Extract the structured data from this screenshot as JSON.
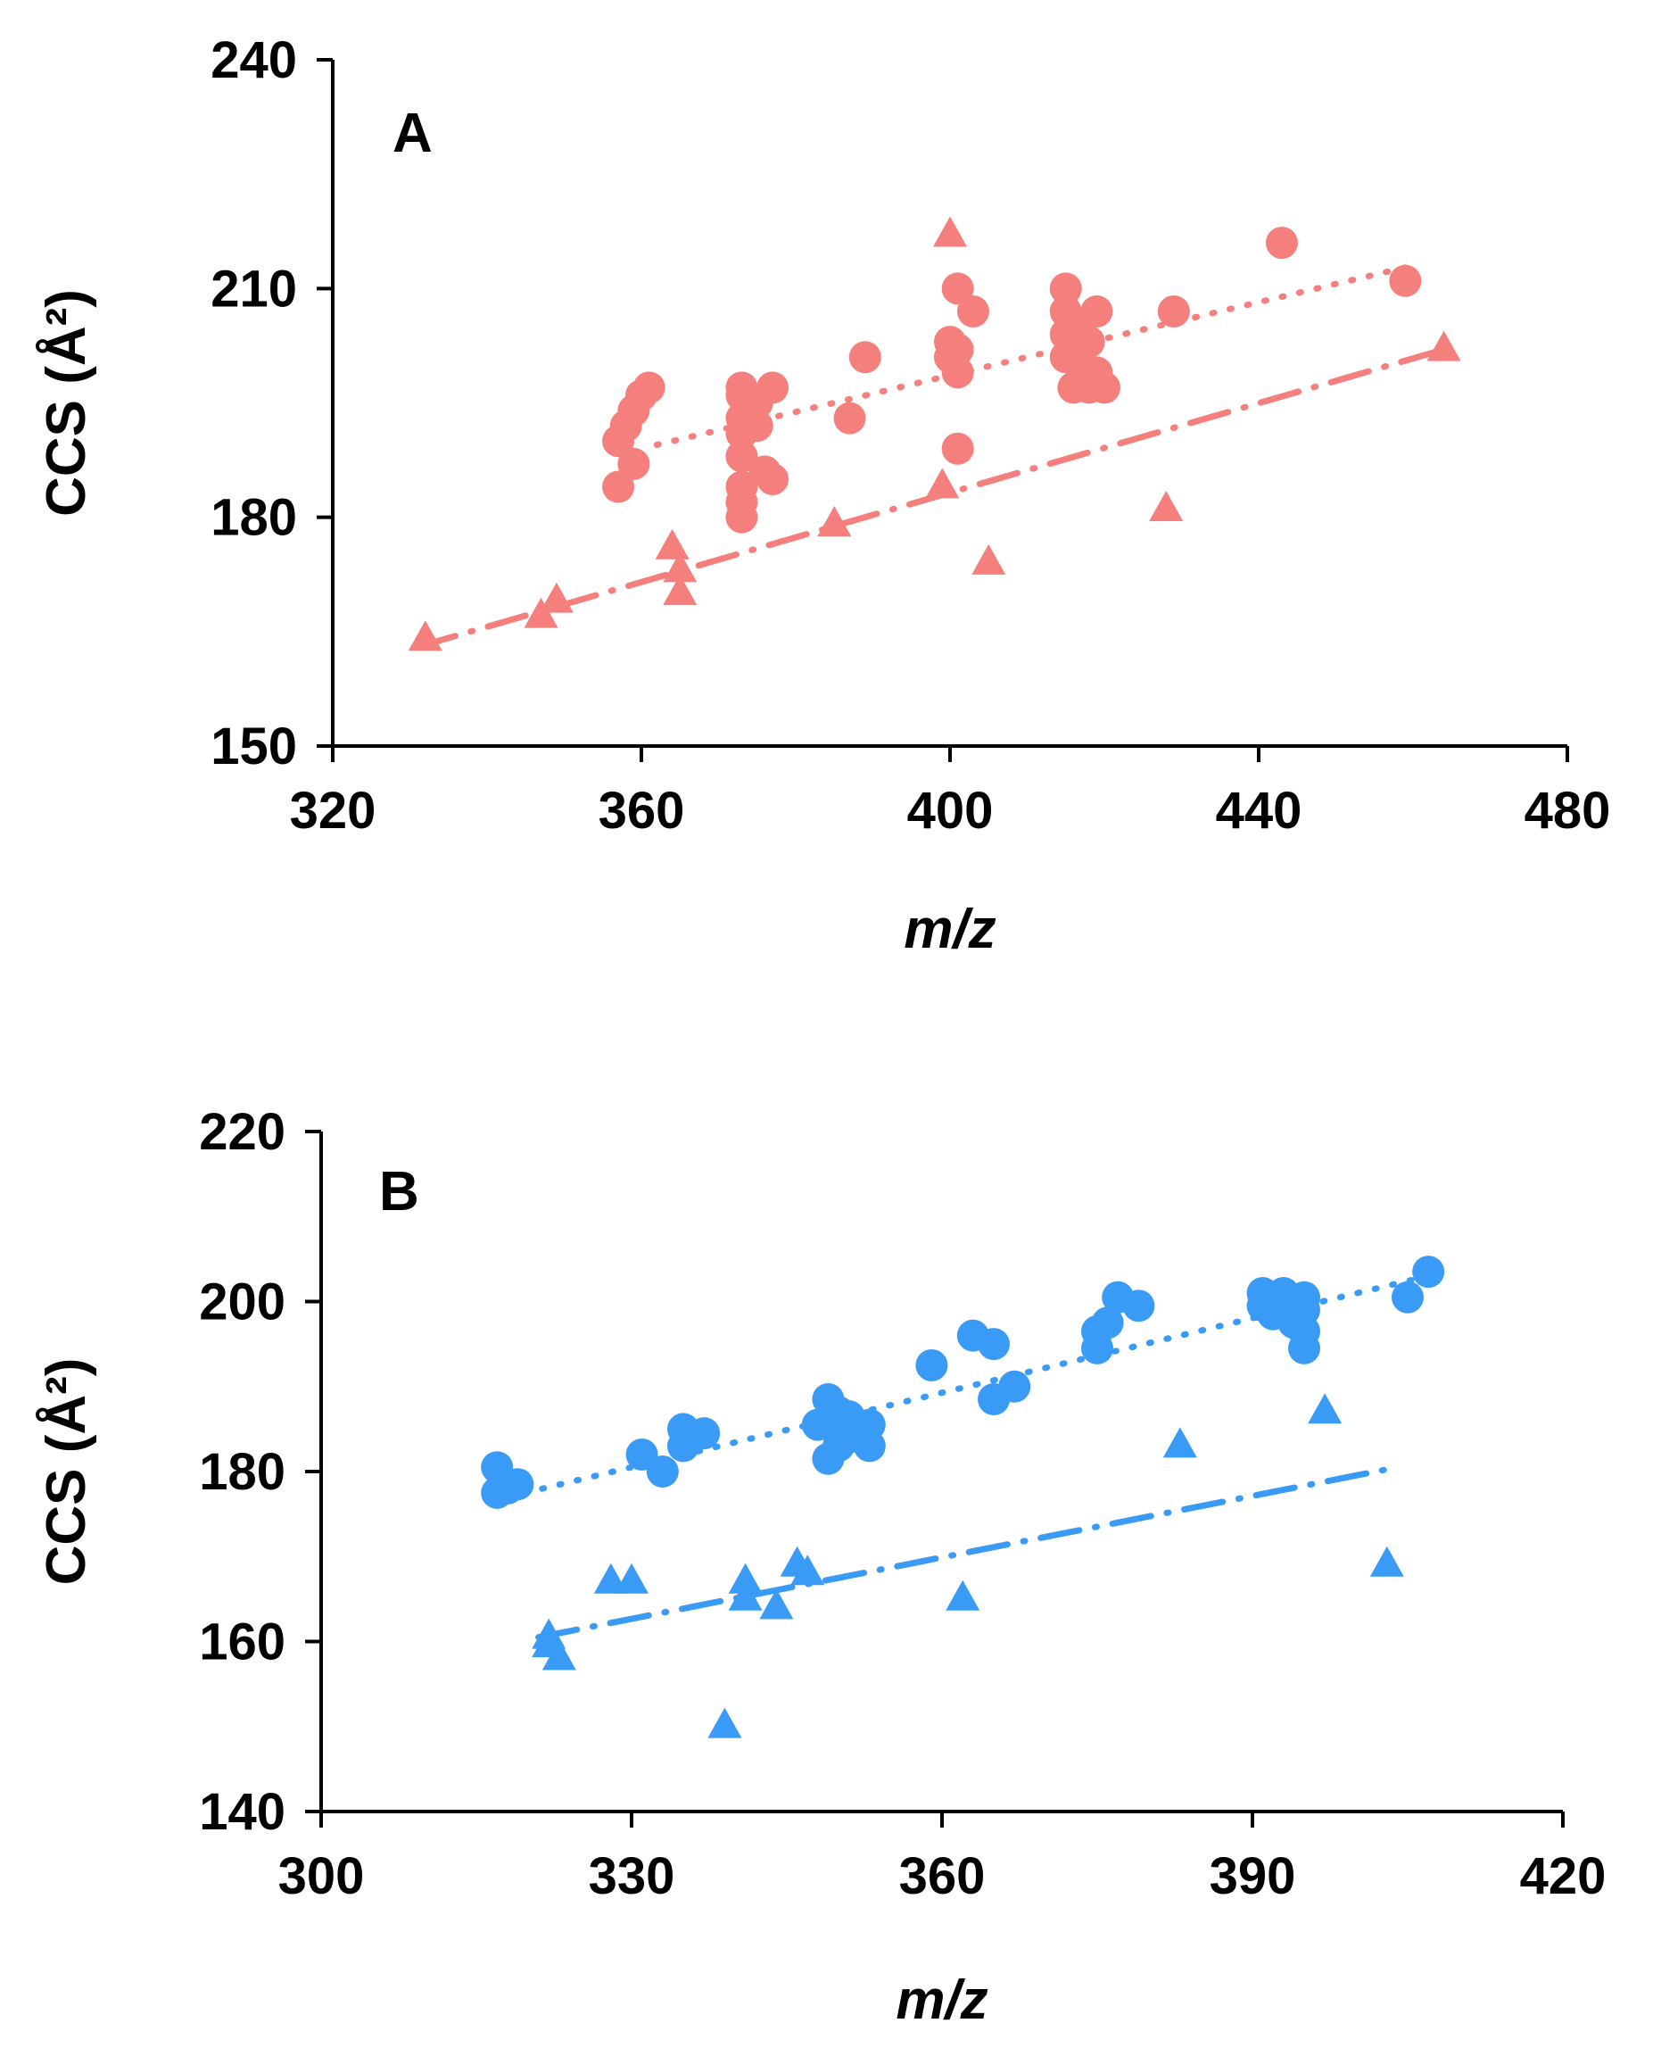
{
  "chart_data": [
    {
      "type": "scatter",
      "panel_label": "A",
      "xlabel": "m/z",
      "ylabel": "CCS (Å²)",
      "xlim": [
        320,
        480
      ],
      "ylim": [
        150,
        240
      ],
      "xticks": [
        "320",
        "360",
        "400",
        "440",
        "480"
      ],
      "yticks": [
        "150",
        "180",
        "210",
        "240"
      ],
      "color": "#F47F7D",
      "series": [
        {
          "name": "circles",
          "marker": "circle",
          "points": [
            [
              357,
              190
            ],
            [
              357,
              184
            ],
            [
              358,
              192
            ],
            [
              359,
              194
            ],
            [
              359,
              187
            ],
            [
              360,
              196
            ],
            [
              361,
              197
            ],
            [
              373,
              197
            ],
            [
              373,
              196
            ],
            [
              373,
              193
            ],
            [
              373,
              191
            ],
            [
              373,
              188
            ],
            [
              373,
              184
            ],
            [
              373,
              182
            ],
            [
              373,
              180
            ],
            [
              375,
              195
            ],
            [
              375,
              192
            ],
            [
              376,
              186
            ],
            [
              377,
              197
            ],
            [
              377,
              185
            ],
            [
              387,
              193
            ],
            [
              389,
              201
            ],
            [
              400,
              203
            ],
            [
              400,
              201
            ],
            [
              401,
              202
            ],
            [
              401,
              199
            ],
            [
              401,
              210
            ],
            [
              401,
              189
            ],
            [
              403,
              207
            ],
            [
              415,
              210
            ],
            [
              415,
              207
            ],
            [
              415,
              204
            ],
            [
              415,
              201
            ],
            [
              416,
              205
            ],
            [
              416,
              197
            ],
            [
              417,
              200
            ],
            [
              418,
              203
            ],
            [
              418,
              197
            ],
            [
              419,
              207
            ],
            [
              419,
              199
            ],
            [
              420,
              197
            ],
            [
              429,
              207
            ],
            [
              443,
              216
            ],
            [
              459,
              211
            ]
          ]
        },
        {
          "name": "triangles",
          "marker": "triangle",
          "points": [
            [
              332,
              164
            ],
            [
              347,
              167
            ],
            [
              349,
              169
            ],
            [
              364,
              176
            ],
            [
              365,
              173
            ],
            [
              365,
              170
            ],
            [
              385,
              179
            ],
            [
              399,
              184
            ],
            [
              400,
              217
            ],
            [
              405,
              174
            ],
            [
              428,
              181
            ],
            [
              464,
              202
            ]
          ]
        }
      ],
      "trendlines": [
        {
          "series": "circles",
          "style": "dotted",
          "x": [
            362,
            460
          ],
          "y": [
            189.5,
            213
          ]
        },
        {
          "series": "triangles",
          "style": "dashdot",
          "x": [
            331,
            464
          ],
          "y": [
            163,
            202
          ]
        }
      ]
    },
    {
      "type": "scatter",
      "panel_label": "B",
      "xlabel": "m/z",
      "ylabel": "CCS (Å²)",
      "xlim": [
        300,
        420
      ],
      "ylim": [
        140,
        220
      ],
      "xticks": [
        "300",
        "330",
        "360",
        "390",
        "420"
      ],
      "yticks": [
        "140",
        "160",
        "180",
        "200",
        "220"
      ],
      "color": "#3A9BF7",
      "series": [
        {
          "name": "circles",
          "marker": "circle",
          "points": [
            [
              317,
              180.5
            ],
            [
              317,
              177.5
            ],
            [
              318,
              178
            ],
            [
              319,
              178.5
            ],
            [
              331,
              182
            ],
            [
              333,
              180
            ],
            [
              335,
              183
            ],
            [
              335,
              185
            ],
            [
              337,
              184.5
            ],
            [
              348,
              185.5
            ],
            [
              349,
              188.5
            ],
            [
              349,
              186
            ],
            [
              349,
              181.5
            ],
            [
              350,
              183
            ],
            [
              350,
              187
            ],
            [
              351,
              184
            ],
            [
              351,
              186.5
            ],
            [
              352,
              185
            ],
            [
              353,
              183
            ],
            [
              353,
              185.5
            ],
            [
              359,
              192.5
            ],
            [
              363,
              196
            ],
            [
              365,
              195
            ],
            [
              365,
              188.5
            ],
            [
              367,
              190
            ],
            [
              375,
              194.5
            ],
            [
              375,
              196.5
            ],
            [
              376,
              197.5
            ],
            [
              377,
              200.5
            ],
            [
              379,
              199.5
            ],
            [
              391,
              201
            ],
            [
              391,
              199.5
            ],
            [
              392,
              198.5
            ],
            [
              393,
              201
            ],
            [
              393,
              199.5
            ],
            [
              394,
              200
            ],
            [
              394,
              197.5
            ],
            [
              395,
              196.5
            ],
            [
              395,
              200.5
            ],
            [
              395,
              199
            ],
            [
              395,
              194.5
            ],
            [
              405,
              200.5
            ],
            [
              407,
              203.5
            ]
          ]
        },
        {
          "name": "triangles",
          "marker": "triangle",
          "points": [
            [
              322,
              159.5
            ],
            [
              322,
              160.5
            ],
            [
              323,
              158
            ],
            [
              328,
              167
            ],
            [
              330,
              167
            ],
            [
              339,
              150
            ],
            [
              341,
              167
            ],
            [
              341,
              165
            ],
            [
              344,
              164
            ],
            [
              346,
              169
            ],
            [
              347,
              168
            ],
            [
              362,
              165
            ],
            [
              383,
              183
            ],
            [
              397,
              187
            ],
            [
              403,
              169
            ]
          ]
        }
      ],
      "trendlines": [
        {
          "series": "circles",
          "style": "dotted",
          "x": [
            318,
            407
          ],
          "y": [
            177,
            203
          ]
        },
        {
          "series": "triangles",
          "style": "dashdot",
          "x": [
            321,
            404
          ],
          "y": [
            160.5,
            180.5
          ]
        }
      ]
    }
  ]
}
